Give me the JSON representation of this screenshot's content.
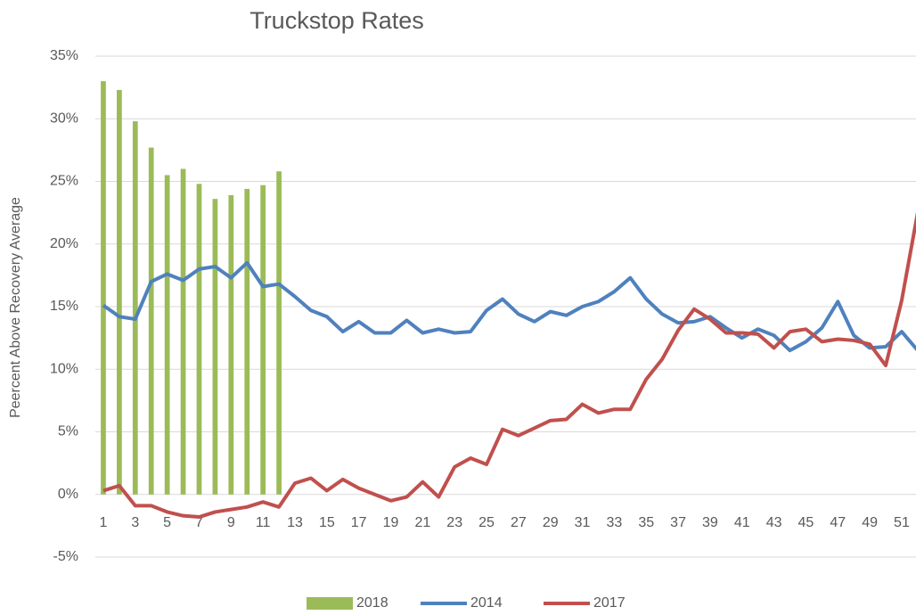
{
  "chart_data": {
    "type": "combo",
    "title": "Truckstop Rates",
    "y_label": "Peercent Above Recovery Average",
    "categories": [
      "1",
      null,
      "3",
      null,
      "5",
      null,
      "7",
      null,
      "9",
      null,
      "11",
      null,
      "13",
      null,
      "15",
      null,
      "17",
      null,
      "19",
      null,
      "21",
      null,
      "23",
      null,
      "25",
      null,
      "27",
      null,
      "29",
      null,
      "31",
      null,
      "33",
      null,
      "35",
      null,
      "37",
      null,
      "39",
      null,
      "41",
      null,
      "43",
      null,
      "45",
      null,
      "47",
      null,
      "49",
      null,
      "51",
      null
    ],
    "ylim": [
      -5,
      35
    ],
    "yticks": [
      {
        "value": -5,
        "label": "-5%"
      },
      {
        "value": 0,
        "label": "0%"
      },
      {
        "value": 5,
        "label": "5%"
      },
      {
        "value": 10,
        "label": "10%"
      },
      {
        "value": 15,
        "label": "15%"
      },
      {
        "value": 20,
        "label": "20%"
      },
      {
        "value": 25,
        "label": "25%"
      },
      {
        "value": 30,
        "label": "30%"
      },
      {
        "value": 35,
        "label": "35%"
      }
    ],
    "grid": true,
    "legend": "bottom",
    "series": [
      {
        "name": "2018",
        "type": "bar",
        "color": "#9bbb59",
        "values": [
          33.0,
          32.3,
          29.8,
          27.7,
          25.5,
          26.0,
          24.8,
          23.6,
          23.9,
          24.4,
          24.7,
          25.8,
          null,
          null,
          null,
          null,
          null,
          null,
          null,
          null,
          null,
          null,
          null,
          null,
          null,
          null,
          null,
          null,
          null,
          null,
          null,
          null,
          null,
          null,
          null,
          null,
          null,
          null,
          null,
          null,
          null,
          null,
          null,
          null,
          null,
          null,
          null,
          null,
          null,
          null,
          null,
          null
        ]
      },
      {
        "name": "2014",
        "type": "line",
        "color": "#4f81bd",
        "values": [
          15.1,
          14.2,
          14.0,
          17.0,
          17.6,
          17.1,
          18.0,
          18.2,
          17.3,
          18.5,
          16.6,
          16.8,
          15.8,
          14.7,
          14.2,
          13.0,
          13.8,
          12.9,
          12.9,
          13.9,
          12.9,
          13.2,
          12.9,
          13.0,
          14.7,
          15.6,
          14.4,
          13.8,
          14.6,
          14.3,
          15.0,
          15.4,
          16.2,
          17.3,
          15.6,
          14.4,
          13.7,
          13.8,
          14.2,
          13.3,
          12.5,
          13.2,
          12.7,
          11.5,
          12.2,
          13.3,
          15.4,
          12.7,
          11.7,
          11.8,
          13.0,
          11.5
        ]
      },
      {
        "name": "2017",
        "type": "line",
        "color": "#c0504d",
        "values": [
          0.3,
          0.7,
          -0.9,
          -0.9,
          -1.4,
          -1.7,
          -1.8,
          -1.4,
          -1.2,
          -1.0,
          -0.6,
          -1.0,
          0.9,
          1.3,
          0.3,
          1.2,
          0.5,
          0.0,
          -0.5,
          -0.2,
          1.0,
          -0.2,
          2.2,
          2.9,
          2.4,
          5.2,
          4.7,
          5.3,
          5.9,
          6.0,
          7.2,
          6.5,
          6.8,
          6.8,
          9.2,
          10.8,
          13.1,
          14.8,
          14.0,
          12.9,
          12.9,
          12.8,
          11.7,
          13.0,
          13.2,
          12.2,
          12.4,
          12.3,
          12.0,
          10.3,
          15.5,
          22.5
        ]
      }
    ]
  }
}
